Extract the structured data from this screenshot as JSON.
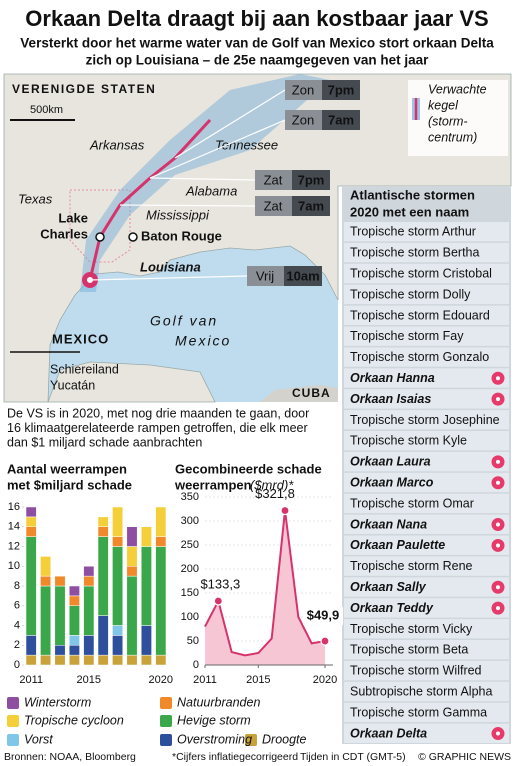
{
  "header": {
    "title": "Orkaan Delta draagt bij aan kostbaar jaar VS",
    "subtitle": [
      "Versterkt door het warme water van de Golf van Mexico stort orkaan Delta",
      "zich op Louisiana – de 25e naamgegeven van het jaar"
    ]
  },
  "map": {
    "labels": [
      "VERENIGDE STATEN",
      "Arkansas",
      "Tennessee",
      "Texas",
      "Alabama",
      "Mississippi",
      "Louisiana",
      "MEXICO",
      "Schiereiland",
      "Yucatán",
      "CUBA"
    ],
    "gulf": [
      "Golf van",
      "Mexico"
    ],
    "scale": "500km",
    "cities": [
      {
        "lines": [
          "Lake",
          "Charles"
        ]
      },
      {
        "lines": [
          "Baton Rouge"
        ]
      }
    ],
    "forecasts": [
      {
        "day": "Zon",
        "time": "7pm"
      },
      {
        "day": "Zon",
        "time": "7am"
      },
      {
        "day": "Zat",
        "time": "7pm"
      },
      {
        "day": "Zat",
        "time": "7am"
      },
      {
        "day": "Vrij",
        "time": "10am"
      }
    ],
    "legend": [
      "Verwachte",
      "kegel",
      "(storm-",
      "centrum)"
    ]
  },
  "storm_list": {
    "title": [
      "Atlantische stormen",
      "2020 met een naam"
    ],
    "items": [
      {
        "name": "Tropische storm Arthur",
        "hurricane": false
      },
      {
        "name": "Tropische storm Bertha",
        "hurricane": false
      },
      {
        "name": "Tropische storm Cristobal",
        "hurricane": false
      },
      {
        "name": "Tropische storm Dolly",
        "hurricane": false
      },
      {
        "name": "Tropische storm Edouard",
        "hurricane": false
      },
      {
        "name": "Tropische storm Fay",
        "hurricane": false
      },
      {
        "name": "Tropische storm Gonzalo",
        "hurricane": false
      },
      {
        "name": "Orkaan Hanna",
        "hurricane": true
      },
      {
        "name": "Orkaan Isaias",
        "hurricane": true
      },
      {
        "name": "Tropische storm Josephine",
        "hurricane": false
      },
      {
        "name": "Tropische storm Kyle",
        "hurricane": false
      },
      {
        "name": "Orkaan Laura",
        "hurricane": true
      },
      {
        "name": "Orkaan Marco",
        "hurricane": true
      },
      {
        "name": "Tropische storm Omar",
        "hurricane": false
      },
      {
        "name": "Orkaan Nana",
        "hurricane": true
      },
      {
        "name": "Orkaan Paulette",
        "hurricane": true
      },
      {
        "name": "Tropische storm Rene",
        "hurricane": false
      },
      {
        "name": "Orkaan Sally",
        "hurricane": true
      },
      {
        "name": "Orkaan Teddy",
        "hurricane": true
      },
      {
        "name": "Tropische storm Vicky",
        "hurricane": false
      },
      {
        "name": "Tropische storm Beta",
        "hurricane": false
      },
      {
        "name": "Tropische storm Wilfred",
        "hurricane": false
      },
      {
        "name": "Subtropische storm  Alpha",
        "hurricane": false
      },
      {
        "name": "Tropische storm Gamma",
        "hurricane": false
      },
      {
        "name": "Orkaan Delta",
        "hurricane": true
      }
    ]
  },
  "intro": [
    "De VS is in 2020, met nog drie maanden te gaan, door",
    "16 klimaatgerelateerde rampen getroffen, die elk meer",
    "dan $1 miljard schade aanbrachten"
  ],
  "chart_data": [
    {
      "type": "stacked-bar",
      "title": [
        "Aantal weerrampen",
        "met $miljard schade"
      ],
      "categories": [
        "2011",
        null,
        null,
        null,
        "2015",
        null,
        null,
        null,
        null,
        "2020"
      ],
      "ylim": [
        0,
        16
      ],
      "yticks": [
        0,
        2,
        4,
        6,
        8,
        10,
        12,
        14,
        16
      ],
      "grid": false,
      "series": [
        {
          "name": "Droogte",
          "color": "#c9a23a",
          "values": [
            1,
            1,
            1,
            1,
            1,
            1,
            1,
            1,
            1,
            1
          ]
        },
        {
          "name": "Overstroming",
          "color": "#2e4f9b",
          "values": [
            2,
            0,
            1,
            1,
            2,
            4,
            2,
            0,
            3,
            0
          ]
        },
        {
          "name": "Vorst",
          "color": "#7fc6e8",
          "values": [
            0,
            0,
            0,
            1,
            0,
            0,
            1,
            0,
            0,
            0
          ]
        },
        {
          "name": "Hevige storm",
          "color": "#3aa84a",
          "values": [
            10,
            7,
            6,
            3,
            5,
            8,
            8,
            8,
            8,
            11
          ]
        },
        {
          "name": "Natuurbranden",
          "color": "#f0892a",
          "values": [
            1,
            1,
            1,
            1,
            1,
            1,
            1,
            1,
            0,
            1
          ]
        },
        {
          "name": "Tropische cycloon",
          "color": "#f4cf3a",
          "values": [
            1,
            2,
            0,
            0,
            0,
            1,
            3,
            2,
            2,
            3
          ]
        },
        {
          "name": "Winterstorm",
          "color": "#8e4fa3",
          "values": [
            1,
            0,
            0,
            1,
            1,
            0,
            0,
            2,
            0,
            0
          ]
        }
      ]
    },
    {
      "type": "area-line",
      "title": [
        "Gecombineerde schade",
        "weerrampen"
      ],
      "title_unit": "($mrd)*",
      "color": "#d6336c",
      "fill": "#f6c6d4",
      "x": [
        2011,
        2012,
        2013,
        2014,
        2015,
        2016,
        2017,
        2018,
        2019,
        2020
      ],
      "values": [
        80,
        133.3,
        27,
        20,
        25,
        55,
        321.8,
        100,
        45,
        49.9
      ],
      "value_labels": [
        null,
        "$133,3",
        null,
        null,
        null,
        null,
        "$321,8",
        null,
        null,
        "$49,9"
      ],
      "xlim": [
        2011,
        2020
      ],
      "xticks": [
        2011,
        2015,
        2020
      ],
      "ylim": [
        0,
        350
      ],
      "yticks": [
        0,
        50,
        100,
        150,
        200,
        250,
        300,
        350
      ],
      "grid": true
    }
  ],
  "footer": {
    "sources": "Bronnen: NOAA, Bloomberg",
    "note": "*Cijfers inflatiegecorrigeerd",
    "time": "Tijden in CDT (GMT-5)",
    "credit": "© GRAPHIC NEWS"
  }
}
